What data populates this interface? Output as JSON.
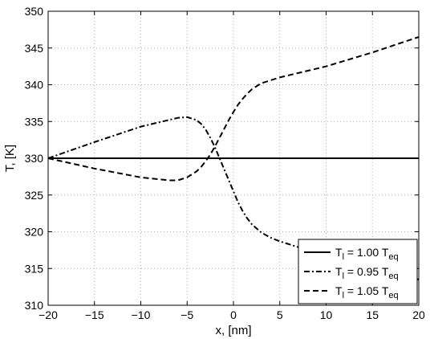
{
  "chart_data": {
    "type": "line",
    "title": "",
    "xlabel": "x, [nm]",
    "ylabel": "T, [K]",
    "xlim": [
      -20,
      20
    ],
    "ylim": [
      310,
      350
    ],
    "xticks": [
      -20,
      -15,
      -10,
      -5,
      0,
      5,
      10,
      15,
      20
    ],
    "yticks": [
      310,
      315,
      320,
      325,
      330,
      335,
      340,
      345,
      350
    ],
    "grid": true,
    "legend_position": "bottom-right",
    "series": [
      {
        "name": "T_l = 1.00 T_eq",
        "legend_main": "T",
        "legend_sub": "l",
        "legend_mid": " = 1.00 T",
        "legend_sub2": "eq",
        "style": "solid",
        "color": "#000000",
        "x": [
          -20,
          20
        ],
        "y": [
          330,
          330
        ]
      },
      {
        "name": "T_l = 0.95 T_eq",
        "legend_main": "T",
        "legend_sub": "l",
        "legend_mid": " = 0.95 T",
        "legend_sub2": "eq",
        "style": "dashdot",
        "color": "#000000",
        "x": [
          -20,
          -15,
          -10,
          -7,
          -6,
          -5,
          -4,
          -3.5,
          -3,
          -2.5,
          -2,
          -1.5,
          -1,
          -0.5,
          0,
          0.5,
          1,
          1.5,
          2,
          3,
          4,
          5,
          7,
          10,
          15,
          20
        ],
        "y": [
          330,
          332.2,
          334.3,
          335.2,
          335.5,
          335.6,
          335.2,
          334.7,
          333.9,
          332.8,
          331.5,
          330,
          328.5,
          327,
          325.5,
          324,
          322.8,
          321.8,
          321,
          319.9,
          319.2,
          318.7,
          317.9,
          316.9,
          315.3,
          313.5
        ]
      },
      {
        "name": "T_l = 1.05 T_eq",
        "legend_main": "T",
        "legend_sub": "l",
        "legend_mid": " = 1.05 T",
        "legend_sub2": "eq",
        "style": "dashed",
        "color": "#000000",
        "x": [
          -20,
          -15,
          -10,
          -7,
          -6,
          -5,
          -4,
          -3.5,
          -3,
          -2.5,
          -2,
          -1.5,
          -1,
          -0.5,
          0,
          0.5,
          1,
          1.5,
          2,
          3,
          4,
          5,
          7,
          10,
          15,
          20
        ],
        "y": [
          330,
          328.6,
          327.4,
          327,
          327,
          327.4,
          328.2,
          328.8,
          329.6,
          330.5,
          331.6,
          332.8,
          334,
          335.2,
          336.3,
          337.3,
          338.1,
          338.8,
          339.4,
          340.2,
          340.6,
          341,
          341.6,
          342.5,
          344.4,
          346.5
        ]
      }
    ]
  }
}
